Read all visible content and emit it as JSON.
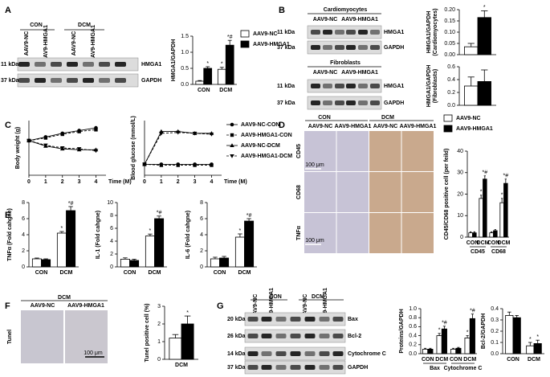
{
  "chart_data": [
    {
      "type": "bar",
      "ylabel": [
        "HMGA1/GAPDH"
      ],
      "categories": [
        "CON",
        "DCM"
      ],
      "ylim": [
        0,
        1.5
      ],
      "yticks": [
        {
          "value": 0,
          "label": "0.0"
        },
        {
          "value": 0.5,
          "label": "0.5"
        },
        {
          "value": 1,
          "label": "1.0"
        },
        {
          "value": 1.5,
          "label": "1.5"
        }
      ],
      "legend": true,
      "series": [
        {
          "name": "AAV9-NC",
          "color": "#ffffff",
          "values": [
            0.1,
            0.47
          ],
          "errors": [
            0.02,
            0.06
          ],
          "sig": [
            null,
            "*"
          ]
        },
        {
          "name": "AAV9-HMGA1",
          "color": "#000000",
          "values": [
            0.5,
            1.22
          ],
          "errors": [
            0.05,
            0.15
          ],
          "sig": [
            "*",
            "*#"
          ]
        }
      ]
    },
    {
      "type": "bar",
      "ylabel": [
        "HMGA1/GAPDH",
        "(Cardiomyocytes)"
      ],
      "categories": [
        null
      ],
      "ylim": [
        0,
        0.2
      ],
      "yticks": [
        {
          "value": 0,
          "label": "0.00"
        },
        {
          "value": 0.05,
          "label": "0.05"
        },
        {
          "value": 0.1,
          "label": "0.10"
        },
        {
          "value": 0.15,
          "label": "0.15"
        },
        {
          "value": 0.2,
          "label": "0.20"
        }
      ],
      "series": [
        {
          "name": "AAV9-NC",
          "color": "#ffffff",
          "values": [
            0.035
          ],
          "errors": [
            0.015
          ],
          "sig": [
            null
          ]
        },
        {
          "name": "AAV9-HMGA1",
          "color": "#000000",
          "values": [
            0.165
          ],
          "errors": [
            0.03
          ],
          "sig": [
            "*"
          ]
        }
      ]
    },
    {
      "type": "bar",
      "ylabel": [
        "HMGA1/GAPDH",
        "(Fibroblasts)"
      ],
      "categories": [
        null
      ],
      "ylim": [
        0,
        0.6
      ],
      "yticks": [
        {
          "value": 0,
          "label": "0.0"
        },
        {
          "value": 0.2,
          "label": "0.2"
        },
        {
          "value": 0.4,
          "label": "0.4"
        },
        {
          "value": 0.6,
          "label": "0.6"
        }
      ],
      "series": [
        {
          "name": "AAV9-NC",
          "color": "#ffffff",
          "values": [
            0.3
          ],
          "errors": [
            0.14
          ],
          "sig": [
            null
          ]
        },
        {
          "name": "AAV9-HMGA1",
          "color": "#000000",
          "values": [
            0.37
          ],
          "errors": [
            0.18
          ],
          "sig": [
            null
          ]
        }
      ]
    },
    {
      "type": "line",
      "ylabel": [
        "Body weight (g)"
      ],
      "xlabel": "Time (M)",
      "x": [
        0,
        1,
        2,
        3,
        4
      ],
      "xlim": [
        0,
        4.6
      ],
      "xticks": [
        0,
        1,
        2,
        3,
        4
      ],
      "ylim": [
        0,
        30
      ],
      "series": [
        {
          "name": "AAV9-NC-CON",
          "color": "#000000",
          "marker": "circle",
          "linestyle": "solid",
          "values": [
            19,
            21,
            23,
            24.5,
            26
          ]
        },
        {
          "name": "AAV9-HMGA1-CON",
          "color": "#000000",
          "marker": "square",
          "linestyle": "dashed",
          "values": [
            19,
            20.5,
            22.5,
            24,
            25
          ]
        },
        {
          "name": "AAV9-NC-DCM",
          "color": "#000000",
          "marker": "triangle",
          "linestyle": "solid",
          "values": [
            19,
            16,
            14.5,
            14,
            14
          ]
        },
        {
          "name": "AAV9-HMGA1-DCM",
          "color": "#000000",
          "marker": "triangle-down",
          "linestyle": "dashed",
          "values": [
            19,
            16.5,
            15,
            14.5,
            13.5
          ]
        }
      ]
    },
    {
      "type": "line",
      "ylabel": [
        "Blood glucose (mmol/L)"
      ],
      "xlabel": "Time (M)",
      "x": [
        0,
        1,
        2,
        3,
        4
      ],
      "xlim": [
        0,
        4.6
      ],
      "xticks": [
        0,
        1,
        2,
        3,
        4
      ],
      "ylim": [
        0,
        30
      ],
      "legend": true,
      "series": [
        {
          "name": "AAV9-NC-CON",
          "color": "#000000",
          "marker": "circle",
          "linestyle": "solid",
          "values": [
            6,
            6,
            6,
            6,
            6
          ]
        },
        {
          "name": "AAV9-HMGA1-CON",
          "color": "#000000",
          "marker": "square",
          "linestyle": "dashed",
          "values": [
            6,
            5.5,
            5.5,
            5.5,
            5.5
          ]
        },
        {
          "name": "AAV9-NC-DCM",
          "color": "#000000",
          "marker": "triangle",
          "linestyle": "solid",
          "values": [
            6,
            24,
            24,
            23,
            23
          ]
        },
        {
          "name": "AAV9-HMGA1-DCM",
          "color": "#000000",
          "marker": "triangle-down",
          "linestyle": "dashed",
          "values": [
            6,
            23,
            23.5,
            23,
            22.5
          ]
        }
      ]
    },
    {
      "type": "bar",
      "ylabel": [
        "CD45/CD68 positive cell (per feild)"
      ],
      "categories": [
        "CON",
        "DCM",
        "CON",
        "DCM"
      ],
      "groups": [
        "CD45",
        "CD68"
      ],
      "ylim": [
        0,
        40
      ],
      "yticks": [
        0,
        10,
        20,
        30,
        40
      ],
      "legend": true,
      "series": [
        {
          "name": "AAV9-NC",
          "color": "#ffffff",
          "values": [
            2,
            18,
            2,
            16
          ],
          "errors": [
            0.5,
            1.5,
            0.5,
            2
          ],
          "sig": [
            null,
            "*",
            null,
            "*"
          ]
        },
        {
          "name": "AAV9-HMGA1",
          "color": "#000000",
          "values": [
            2,
            27,
            3,
            25
          ],
          "errors": [
            0.5,
            1.5,
            0.5,
            2
          ],
          "sig": [
            null,
            "*#",
            null,
            "*#"
          ]
        }
      ]
    },
    {
      "type": "bar",
      "ylabel": [
        "TNFα (Fold cahgne)"
      ],
      "categories": [
        "CON",
        "DCM"
      ],
      "ylim": [
        0,
        8
      ],
      "yticks": [
        0,
        2,
        4,
        6,
        8
      ],
      "series": [
        {
          "name": "AAV9-NC",
          "color": "#ffffff",
          "values": [
            1,
            4.2
          ],
          "errors": [
            0.1,
            0.2
          ],
          "sig": [
            null,
            "*"
          ]
        },
        {
          "name": "AAV9-HMGA1",
          "color": "#000000",
          "values": [
            0.9,
            7
          ],
          "errors": [
            0.1,
            0.5
          ],
          "sig": [
            null,
            "*#"
          ]
        }
      ]
    },
    {
      "type": "bar",
      "ylabel": [
        "IL-1 (Fold cahgne)"
      ],
      "categories": [
        "CON",
        "DCM"
      ],
      "ylim": [
        0,
        10
      ],
      "yticks": [
        0,
        2,
        4,
        6,
        8,
        10
      ],
      "series": [
        {
          "name": "AAV9-NC",
          "color": "#ffffff",
          "values": [
            1.2,
            4.8
          ],
          "errors": [
            0.2,
            0.3
          ],
          "sig": [
            null,
            "*"
          ]
        },
        {
          "name": "AAV9-HMGA1",
          "color": "#000000",
          "values": [
            1,
            7.5
          ],
          "errors": [
            0.2,
            0.4
          ],
          "sig": [
            null,
            "*#"
          ]
        }
      ]
    },
    {
      "type": "bar",
      "ylabel": [
        "IL-6 (Fold cahgne)"
      ],
      "categories": [
        "CON",
        "DCM"
      ],
      "ylim": [
        0,
        8
      ],
      "yticks": [
        0,
        2,
        4,
        6,
        8
      ],
      "series": [
        {
          "name": "AAV9-NC",
          "color": "#ffffff",
          "values": [
            1,
            3.7
          ],
          "errors": [
            0.2,
            0.4
          ],
          "sig": [
            null,
            "*"
          ]
        },
        {
          "name": "AAV9-HMGA1",
          "color": "#000000",
          "values": [
            1.1,
            5.7
          ],
          "errors": [
            0.2,
            0.3
          ],
          "sig": [
            null,
            "*#"
          ]
        }
      ]
    },
    {
      "type": "bar",
      "ylabel": [
        "Tunel positive cell (%)"
      ],
      "categories": [
        "DCM"
      ],
      "ylim": [
        0,
        3
      ],
      "yticks": [
        0,
        1,
        2,
        3
      ],
      "series": [
        {
          "name": "AAV9-NC",
          "color": "#ffffff",
          "values": [
            1.2
          ],
          "errors": [
            0.2
          ],
          "sig": [
            null
          ]
        },
        {
          "name": "AAV9-HMGA1",
          "color": "#000000",
          "values": [
            2
          ],
          "errors": [
            0.45
          ],
          "sig": [
            "*"
          ]
        }
      ]
    },
    {
      "type": "bar",
      "ylabel": [
        "Proteins/GAPDH"
      ],
      "categories": [
        "CON",
        "DCM",
        "CON",
        "DCM"
      ],
      "groups": [
        "Bax",
        "Cytochrome C"
      ],
      "ylim": [
        0,
        1
      ],
      "yticks": [
        {
          "value": 0,
          "label": "0.0"
        },
        {
          "value": 0.2,
          "label": "0.2"
        },
        {
          "value": 0.4,
          "label": "0.4"
        },
        {
          "value": 0.6,
          "label": "0.6"
        },
        {
          "value": 0.8,
          "label": "0.8"
        },
        {
          "value": 1,
          "label": "1.0"
        }
      ],
      "series": [
        {
          "name": "AAV9-NC",
          "color": "#ffffff",
          "values": [
            0.1,
            0.4,
            0.1,
            0.35
          ],
          "errors": [
            0.02,
            0.05,
            0.02,
            0.05
          ],
          "sig": [
            null,
            "*",
            null,
            "*"
          ]
        },
        {
          "name": "AAV9-HMGA1",
          "color": "#000000",
          "values": [
            0.1,
            0.55,
            0.12,
            0.78
          ],
          "errors": [
            0.02,
            0.06,
            0.02,
            0.1
          ],
          "sig": [
            null,
            "*#",
            null,
            "*#"
          ]
        }
      ]
    },
    {
      "type": "bar",
      "ylabel": [
        "Bcl-2/GAPDH"
      ],
      "categories": [
        "CON",
        "DCM"
      ],
      "ylim": [
        0,
        0.4
      ],
      "yticks": [
        {
          "value": 0,
          "label": "0.0"
        },
        {
          "value": 0.1,
          "label": "0.1"
        },
        {
          "value": 0.2,
          "label": "0.2"
        },
        {
          "value": 0.3,
          "label": "0.3"
        },
        {
          "value": 0.4,
          "label": "0.4"
        }
      ],
      "series": [
        {
          "name": "AAV9-NC",
          "color": "#ffffff",
          "values": [
            0.34,
            0.07
          ],
          "errors": [
            0.03,
            0.03
          ],
          "sig": [
            null,
            "*"
          ]
        },
        {
          "name": "AAV9-HMGA1",
          "color": "#000000",
          "values": [
            0.32,
            0.09
          ],
          "errors": [
            0.02,
            0.03
          ],
          "sig": [
            null,
            "*"
          ]
        }
      ]
    }
  ],
  "panels": {
    "letters": [
      "A",
      "B",
      "C",
      "D",
      "E",
      "F",
      "G"
    ],
    "a": {
      "groups": [
        "CON",
        "DCM"
      ],
      "lanes": [
        "AAV9-NC",
        "AAV9-HMGA1",
        "AAV9-NC",
        "AAV9-HMGA1"
      ],
      "sizes": [
        "11 kDa",
        "37 kDa"
      ],
      "proteins": [
        "HMGA1",
        "GAPDH"
      ]
    },
    "b": {
      "blots": [
        {
          "title": "Cardiomyocytes",
          "lanes": [
            "AAV9-NC",
            "AAV9-HMGA1"
          ],
          "sizes": [
            "11 kDa",
            "37 kDa"
          ],
          "proteins": [
            "HMGA1",
            "GAPDH"
          ]
        },
        {
          "title": "Fibroblasts",
          "lanes": [
            "AAV9-NC",
            "AAV9-HMGA1"
          ],
          "sizes": [
            "11 kDa",
            "37 kDa"
          ],
          "proteins": [
            "HMGA1",
            "GAPDH"
          ]
        }
      ]
    },
    "d": {
      "groups": [
        "CON",
        "DCM"
      ],
      "lanes": [
        "AAV9-NC",
        "AAV9-HMGA1",
        "AAV9-NC",
        "AAV9-HMGA1"
      ],
      "rows": [
        "CD45",
        "CD68",
        "TNFα"
      ],
      "scale": "100 μm"
    },
    "f": {
      "group": "DCM",
      "lanes": [
        "AAV9-NC",
        "AAV9-HMGA1"
      ],
      "row": "Tunel",
      "scale": "100 μm"
    },
    "g": {
      "groups": [
        "CON",
        "DCM"
      ],
      "lanes": [
        "AAV9-NC",
        "AAV9-HMGA1",
        "AAV9-NC",
        "AAV9-HMGA1"
      ],
      "sizes": [
        "20 kDa",
        "26 kDa",
        "14 kDa",
        "37 kDa"
      ],
      "proteins": [
        "Bax",
        "Bcl-2",
        "Cytochrome C",
        "GAPDH"
      ]
    }
  }
}
